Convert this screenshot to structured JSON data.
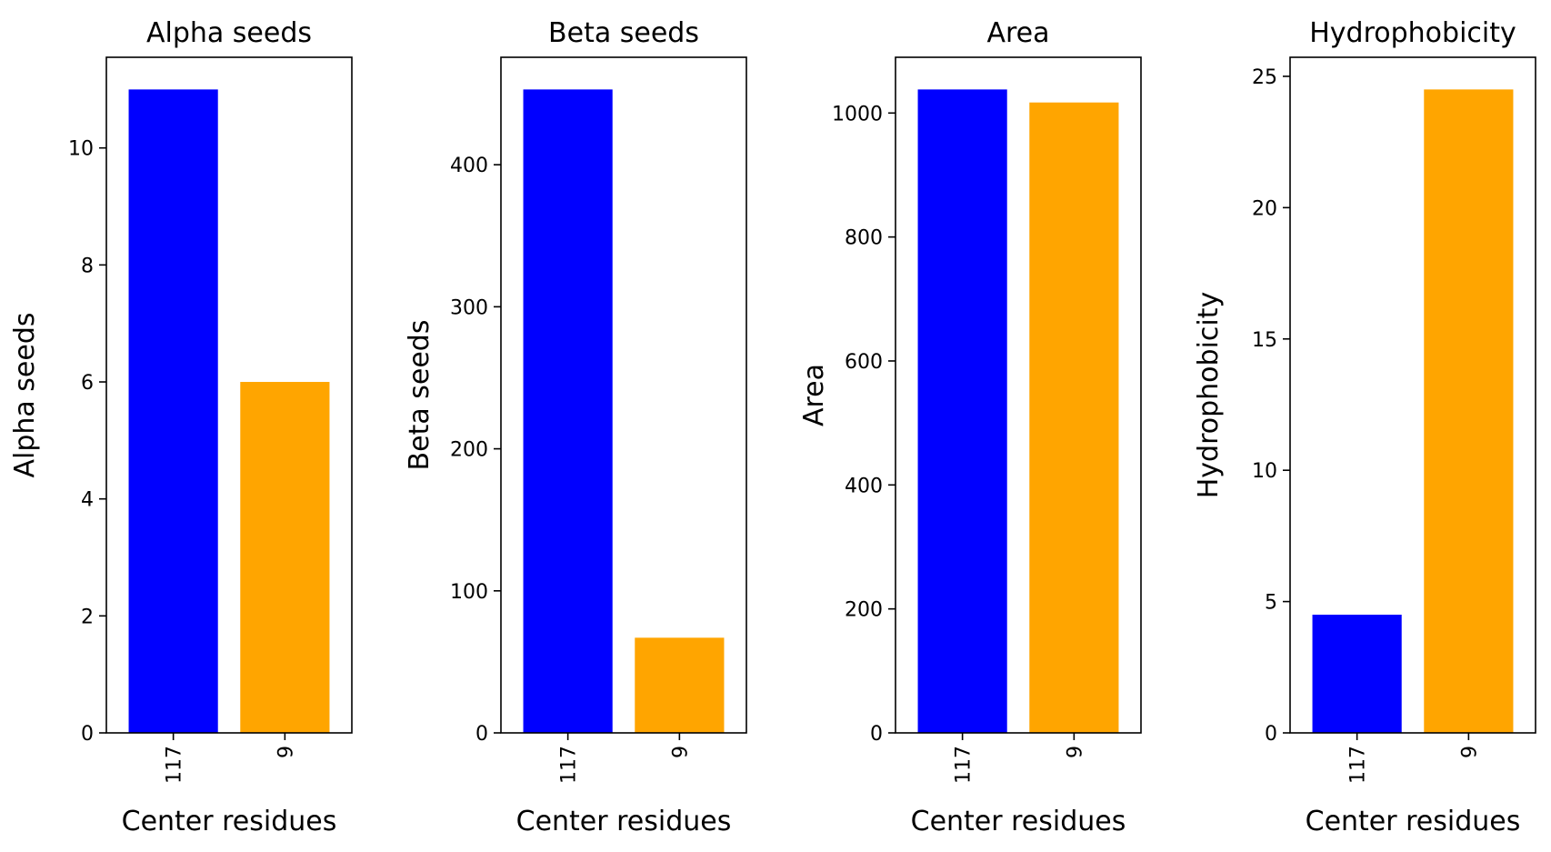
{
  "chart_data": [
    {
      "type": "bar",
      "title": "Alpha seeds",
      "xlabel": "Center residues",
      "ylabel": "Alpha seeds",
      "categories": [
        "117",
        "9"
      ],
      "values": [
        11,
        6
      ],
      "colors": [
        "#0000ff",
        "#ffa500"
      ],
      "ylim": [
        0,
        11.55
      ],
      "yticks": [
        0,
        2,
        4,
        6,
        8,
        10
      ],
      "grid": false
    },
    {
      "type": "bar",
      "title": "Beta seeds",
      "xlabel": "Center residues",
      "ylabel": "Beta seeds",
      "categories": [
        "117",
        "9"
      ],
      "values": [
        453,
        67
      ],
      "colors": [
        "#0000ff",
        "#ffa500"
      ],
      "ylim": [
        0,
        475.65
      ],
      "yticks": [
        0,
        100,
        200,
        300,
        400
      ],
      "grid": false
    },
    {
      "type": "bar",
      "title": "Area",
      "xlabel": "Center residues",
      "ylabel": "Area",
      "categories": [
        "117",
        "9"
      ],
      "values": [
        1038,
        1017
      ],
      "colors": [
        "#0000ff",
        "#ffa500"
      ],
      "ylim": [
        0,
        1089.9
      ],
      "yticks": [
        0,
        200,
        400,
        600,
        800,
        1000
      ],
      "grid": false
    },
    {
      "type": "bar",
      "title": "Hydrophobicity",
      "xlabel": "Center residues",
      "ylabel": "Hydrophobicity",
      "categories": [
        "117",
        "9"
      ],
      "values": [
        4.5,
        24.5
      ],
      "colors": [
        "#0000ff",
        "#ffa500"
      ],
      "ylim": [
        0,
        25.725
      ],
      "yticks": [
        0,
        5,
        10,
        15,
        20,
        25
      ],
      "grid": false
    }
  ]
}
